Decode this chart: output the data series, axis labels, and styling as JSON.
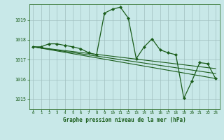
{
  "title": "Graphe pression niveau de la mer (hPa)",
  "bg_color": "#c8e8e8",
  "grid_color": "#b0c8c8",
  "line_color": "#1a5c1a",
  "xlim": [
    -0.5,
    23.5
  ],
  "ylim": [
    1014.5,
    1019.8
  ],
  "yticks": [
    1015,
    1016,
    1017,
    1018,
    1019
  ],
  "xticks": [
    0,
    1,
    2,
    3,
    4,
    5,
    6,
    7,
    8,
    9,
    10,
    11,
    12,
    13,
    14,
    15,
    16,
    17,
    18,
    19,
    20,
    21,
    22,
    23
  ],
  "main_line": {
    "x": [
      0,
      1,
      2,
      3,
      4,
      5,
      6,
      7,
      8,
      9,
      10,
      11,
      12,
      13,
      14,
      15,
      16,
      17,
      18,
      19,
      20,
      21,
      22,
      23
    ],
    "y": [
      1017.65,
      1017.65,
      1017.8,
      1017.8,
      1017.72,
      1017.65,
      1017.55,
      1017.35,
      1017.25,
      1019.35,
      1019.55,
      1019.65,
      1019.1,
      1017.05,
      1017.65,
      1018.05,
      1017.5,
      1017.35,
      1017.25,
      1015.05,
      1015.9,
      1016.85,
      1016.8,
      1016.05
    ]
  },
  "trend_lines": [
    {
      "x": [
        0,
        23
      ],
      "y": [
        1017.65,
        1016.05
      ]
    },
    {
      "x": [
        0,
        23
      ],
      "y": [
        1017.65,
        1016.3
      ]
    },
    {
      "x": [
        0,
        23
      ],
      "y": [
        1017.65,
        1016.55
      ]
    }
  ]
}
